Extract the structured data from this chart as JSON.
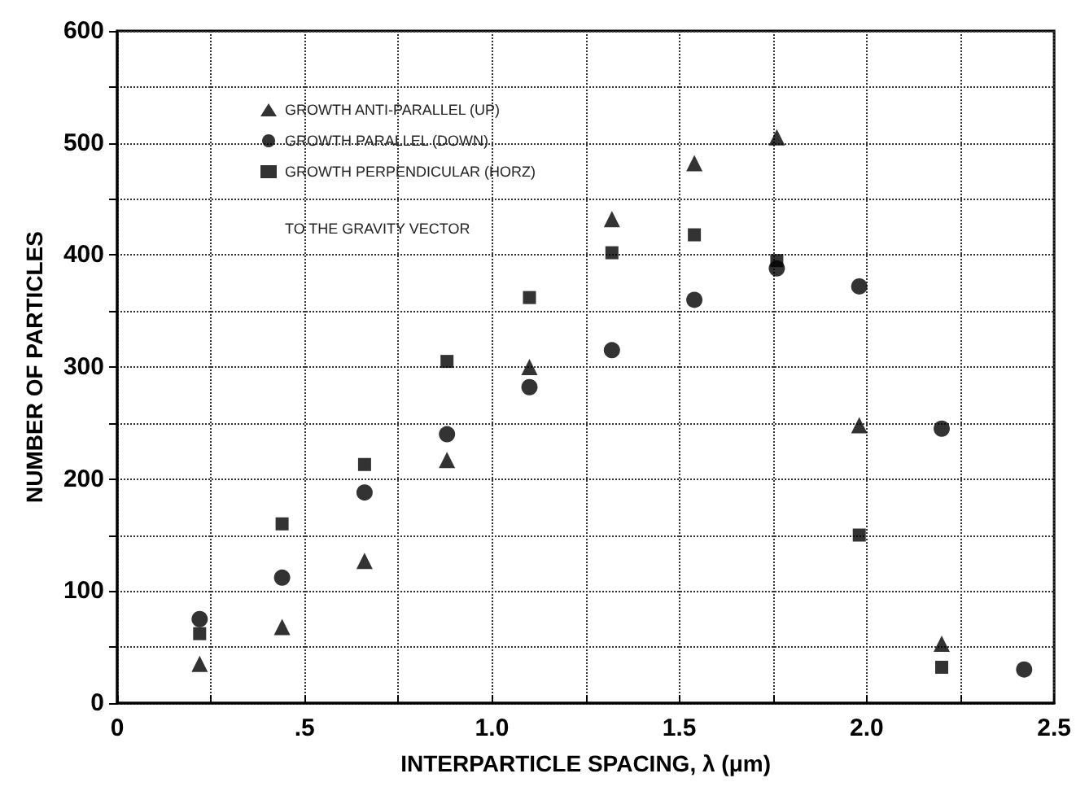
{
  "chart_data": {
    "type": "scatter",
    "xlabel": "INTERPARTICLE SPACING, λ (μm)",
    "ylabel": "NUMBER OF PARTICLES",
    "x": [
      0.22,
      0.44,
      0.66,
      0.88,
      1.1,
      1.32,
      1.54,
      1.76,
      1.98,
      2.2,
      2.42
    ],
    "series": [
      {
        "name": "GROWTH ANTI-PARALLEL (UP)",
        "color": "#000000",
        "marker": "triangle",
        "values": [
          35,
          68,
          127,
          217,
          300,
          432,
          482,
          505,
          248,
          53,
          null
        ]
      },
      {
        "name": "GROWTH PARALLEL (DOWN)",
        "color": "#000000",
        "marker": "circle",
        "values": [
          75,
          112,
          188,
          240,
          282,
          315,
          360,
          388,
          372,
          245,
          30
        ]
      },
      {
        "name": "GROWTH PERPENDICULAR (HORZ)",
        "color": "#000000",
        "marker": "square",
        "values": [
          62,
          160,
          213,
          305,
          362,
          402,
          418,
          395,
          150,
          32,
          null
        ]
      }
    ],
    "annotations": [
      "TO THE GRAVITY VECTOR"
    ],
    "xlim": [
      0,
      2.5
    ],
    "xticks": [
      0,
      {
        "value": 0.25,
        "label": null
      },
      {
        "value": 0.5,
        "label": ".5"
      },
      {
        "value": 0.75,
        "label": null
      },
      {
        "value": 1,
        "label": "1.0"
      },
      {
        "value": 1.25,
        "label": null
      },
      {
        "value": 1.5,
        "label": "1.5"
      },
      {
        "value": 1.75,
        "label": null
      },
      {
        "value": 2,
        "label": "2.0"
      },
      {
        "value": 2.25,
        "label": null
      },
      {
        "value": 2.5,
        "label": "2.5"
      }
    ],
    "ylim": [
      0,
      600
    ],
    "yticks": [
      0,
      {
        "value": 50,
        "label": null
      },
      100,
      {
        "value": 150,
        "label": null
      },
      200,
      {
        "value": 250,
        "label": null
      },
      300,
      {
        "value": 350,
        "label": null
      },
      400,
      {
        "value": 450,
        "label": null
      },
      500,
      {
        "value": 550,
        "label": null
      },
      600
    ],
    "grid": true,
    "legend": "top left"
  }
}
